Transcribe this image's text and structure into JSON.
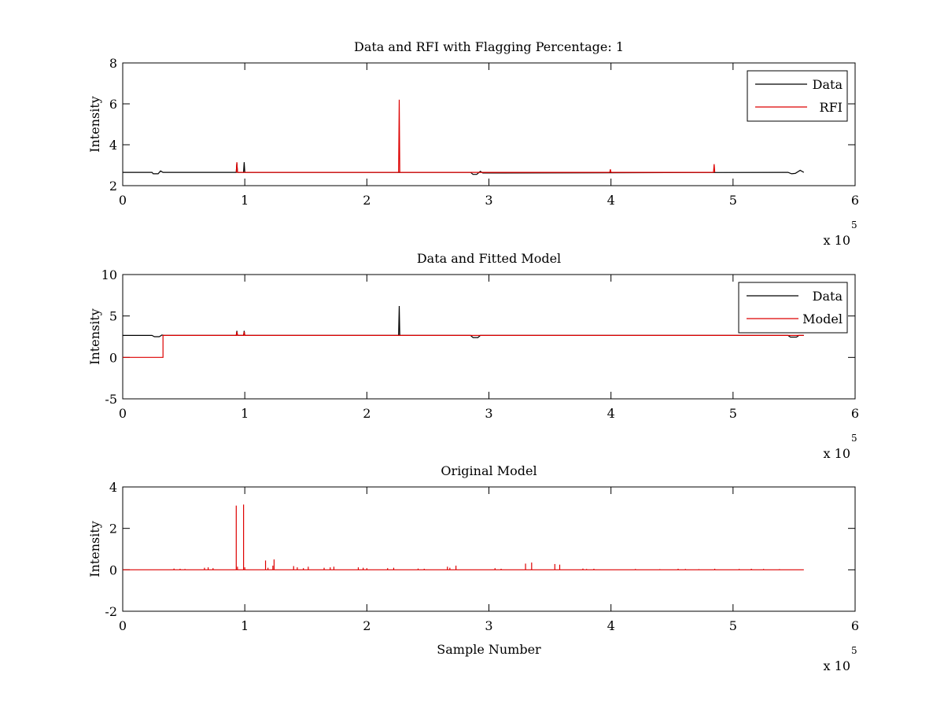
{
  "chart_data": [
    {
      "type": "line",
      "title": "Data and RFI with Flagging Percentage: 1",
      "xlabel": "",
      "ylabel": "Intensity",
      "xlim": [
        0,
        600000
      ],
      "ylim": [
        2,
        8
      ],
      "xticks": [
        "0",
        "1",
        "2",
        "3",
        "4",
        "5",
        "6"
      ],
      "yticks": [
        "2",
        "4",
        "6",
        "8"
      ],
      "x_multiplier": {
        "base": "x 10",
        "exponent": "5"
      },
      "legend": {
        "position": "top-right",
        "entries": [
          "Data",
          "RFI"
        ]
      },
      "series": [
        {
          "name": "Data",
          "color": "#000000",
          "points": [
            [
              0,
              2.65
            ],
            [
              24000,
              2.65
            ],
            [
              25000,
              2.58
            ],
            [
              29000,
              2.58
            ],
            [
              31000,
              2.72
            ],
            [
              33000,
              2.65
            ],
            [
              93000,
              2.65
            ],
            [
              93500,
              3.1
            ],
            [
              94000,
              2.65
            ],
            [
              99000,
              2.65
            ],
            [
              99500,
              3.15
            ],
            [
              100000,
              2.65
            ],
            [
              285000,
              2.65
            ],
            [
              287000,
              2.55
            ],
            [
              290000,
              2.55
            ],
            [
              293000,
              2.7
            ],
            [
              295000,
              2.62
            ],
            [
              300000,
              2.62
            ],
            [
              545000,
              2.65
            ],
            [
              548000,
              2.58
            ],
            [
              551000,
              2.6
            ],
            [
              555000,
              2.75
            ],
            [
              558000,
              2.65
            ]
          ]
        },
        {
          "name": "RFI",
          "color": "#dd0000",
          "points": [
            [
              93000,
              2.65
            ],
            [
              93500,
              3.15
            ],
            [
              94000,
              2.65
            ],
            [
              226000,
              2.65
            ],
            [
              226500,
              6.2
            ],
            [
              227000,
              2.65
            ],
            [
              399000,
              2.65
            ],
            [
              399500,
              2.8
            ],
            [
              400000,
              2.65
            ],
            [
              484000,
              2.65
            ],
            [
              484500,
              3.05
            ],
            [
              485000,
              2.65
            ]
          ]
        }
      ]
    },
    {
      "type": "line",
      "title": "Data and Fitted Model",
      "xlabel": "",
      "ylabel": "Intensity",
      "xlim": [
        0,
        600000
      ],
      "ylim": [
        -5,
        10
      ],
      "xticks": [
        "0",
        "1",
        "2",
        "3",
        "4",
        "5",
        "6"
      ],
      "yticks": [
        "-5",
        "0",
        "5",
        "10"
      ],
      "x_multiplier": {
        "base": "x 10",
        "exponent": "5"
      },
      "legend": {
        "position": "top-right",
        "entries": [
          "Data",
          "Model"
        ]
      },
      "series": [
        {
          "name": "Data",
          "color": "#000000",
          "points": [
            [
              0,
              2.65
            ],
            [
              24000,
              2.65
            ],
            [
              26000,
              2.5
            ],
            [
              30000,
              2.5
            ],
            [
              32000,
              2.7
            ],
            [
              34000,
              2.65
            ],
            [
              93000,
              2.65
            ],
            [
              93500,
              3.2
            ],
            [
              94000,
              2.65
            ],
            [
              99000,
              2.65
            ],
            [
              99500,
              3.2
            ],
            [
              100000,
              2.65
            ],
            [
              226000,
              2.65
            ],
            [
              226500,
              6.2
            ],
            [
              227000,
              2.65
            ],
            [
              285000,
              2.65
            ],
            [
              287000,
              2.4
            ],
            [
              291000,
              2.4
            ],
            [
              293000,
              2.65
            ],
            [
              545000,
              2.65
            ],
            [
              547000,
              2.45
            ],
            [
              552000,
              2.45
            ],
            [
              554000,
              2.65
            ],
            [
              558000,
              2.65
            ]
          ]
        },
        {
          "name": "Model",
          "color": "#dd0000",
          "points": [
            [
              0,
              0
            ],
            [
              33000,
              0
            ],
            [
              33000,
              2.65
            ],
            [
              93000,
              2.65
            ],
            [
              93500,
              3.1
            ],
            [
              94000,
              2.65
            ],
            [
              99000,
              2.65
            ],
            [
              99500,
              3.1
            ],
            [
              100000,
              2.65
            ],
            [
              558000,
              2.65
            ]
          ]
        }
      ]
    },
    {
      "type": "line",
      "title": "Original Model",
      "xlabel": "Sample Number",
      "ylabel": "Intensity",
      "xlim": [
        0,
        600000
      ],
      "ylim": [
        -2,
        4
      ],
      "xticks": [
        "0",
        "1",
        "2",
        "3",
        "4",
        "5",
        "6"
      ],
      "yticks": [
        "-2",
        "0",
        "2",
        "4"
      ],
      "x_multiplier": {
        "base": "x 10",
        "exponent": "5"
      },
      "legend": null,
      "series": [
        {
          "name": "",
          "color": "#dd0000",
          "baseline": 0,
          "xrange": [
            0,
            558000
          ],
          "spikes": [
            [
              42000,
              0.06
            ],
            [
              47000,
              0.05
            ],
            [
              51000,
              0.04
            ],
            [
              67000,
              0.1
            ],
            [
              70000,
              0.12
            ],
            [
              74000,
              0.08
            ],
            [
              93000,
              3.1
            ],
            [
              94000,
              0.15
            ],
            [
              99000,
              3.15
            ],
            [
              100000,
              0.12
            ],
            [
              117000,
              0.45
            ],
            [
              119000,
              0.1
            ],
            [
              123000,
              0.2
            ],
            [
              124000,
              0.5
            ],
            [
              140000,
              0.18
            ],
            [
              143000,
              0.12
            ],
            [
              148000,
              0.08
            ],
            [
              152000,
              0.15
            ],
            [
              165000,
              0.1
            ],
            [
              170000,
              0.12
            ],
            [
              173000,
              0.15
            ],
            [
              193000,
              0.12
            ],
            [
              197000,
              0.1
            ],
            [
              200000,
              0.08
            ],
            [
              217000,
              0.08
            ],
            [
              222000,
              0.1
            ],
            [
              242000,
              0.06
            ],
            [
              247000,
              0.05
            ],
            [
              266000,
              0.15
            ],
            [
              268000,
              0.1
            ],
            [
              273000,
              0.2
            ],
            [
              305000,
              0.08
            ],
            [
              310000,
              0.05
            ],
            [
              330000,
              0.3
            ],
            [
              335000,
              0.35
            ],
            [
              354000,
              0.28
            ],
            [
              358000,
              0.25
            ],
            [
              377000,
              0.06
            ],
            [
              380000,
              0.04
            ],
            [
              386000,
              0.05
            ],
            [
              420000,
              0.04
            ],
            [
              440000,
              0.03
            ],
            [
              455000,
              0.05
            ],
            [
              461000,
              0.04
            ],
            [
              472000,
              0.03
            ],
            [
              485000,
              0.05
            ],
            [
              505000,
              0.04
            ],
            [
              515000,
              0.05
            ],
            [
              525000,
              0.04
            ],
            [
              538000,
              0.03
            ]
          ]
        }
      ]
    }
  ]
}
